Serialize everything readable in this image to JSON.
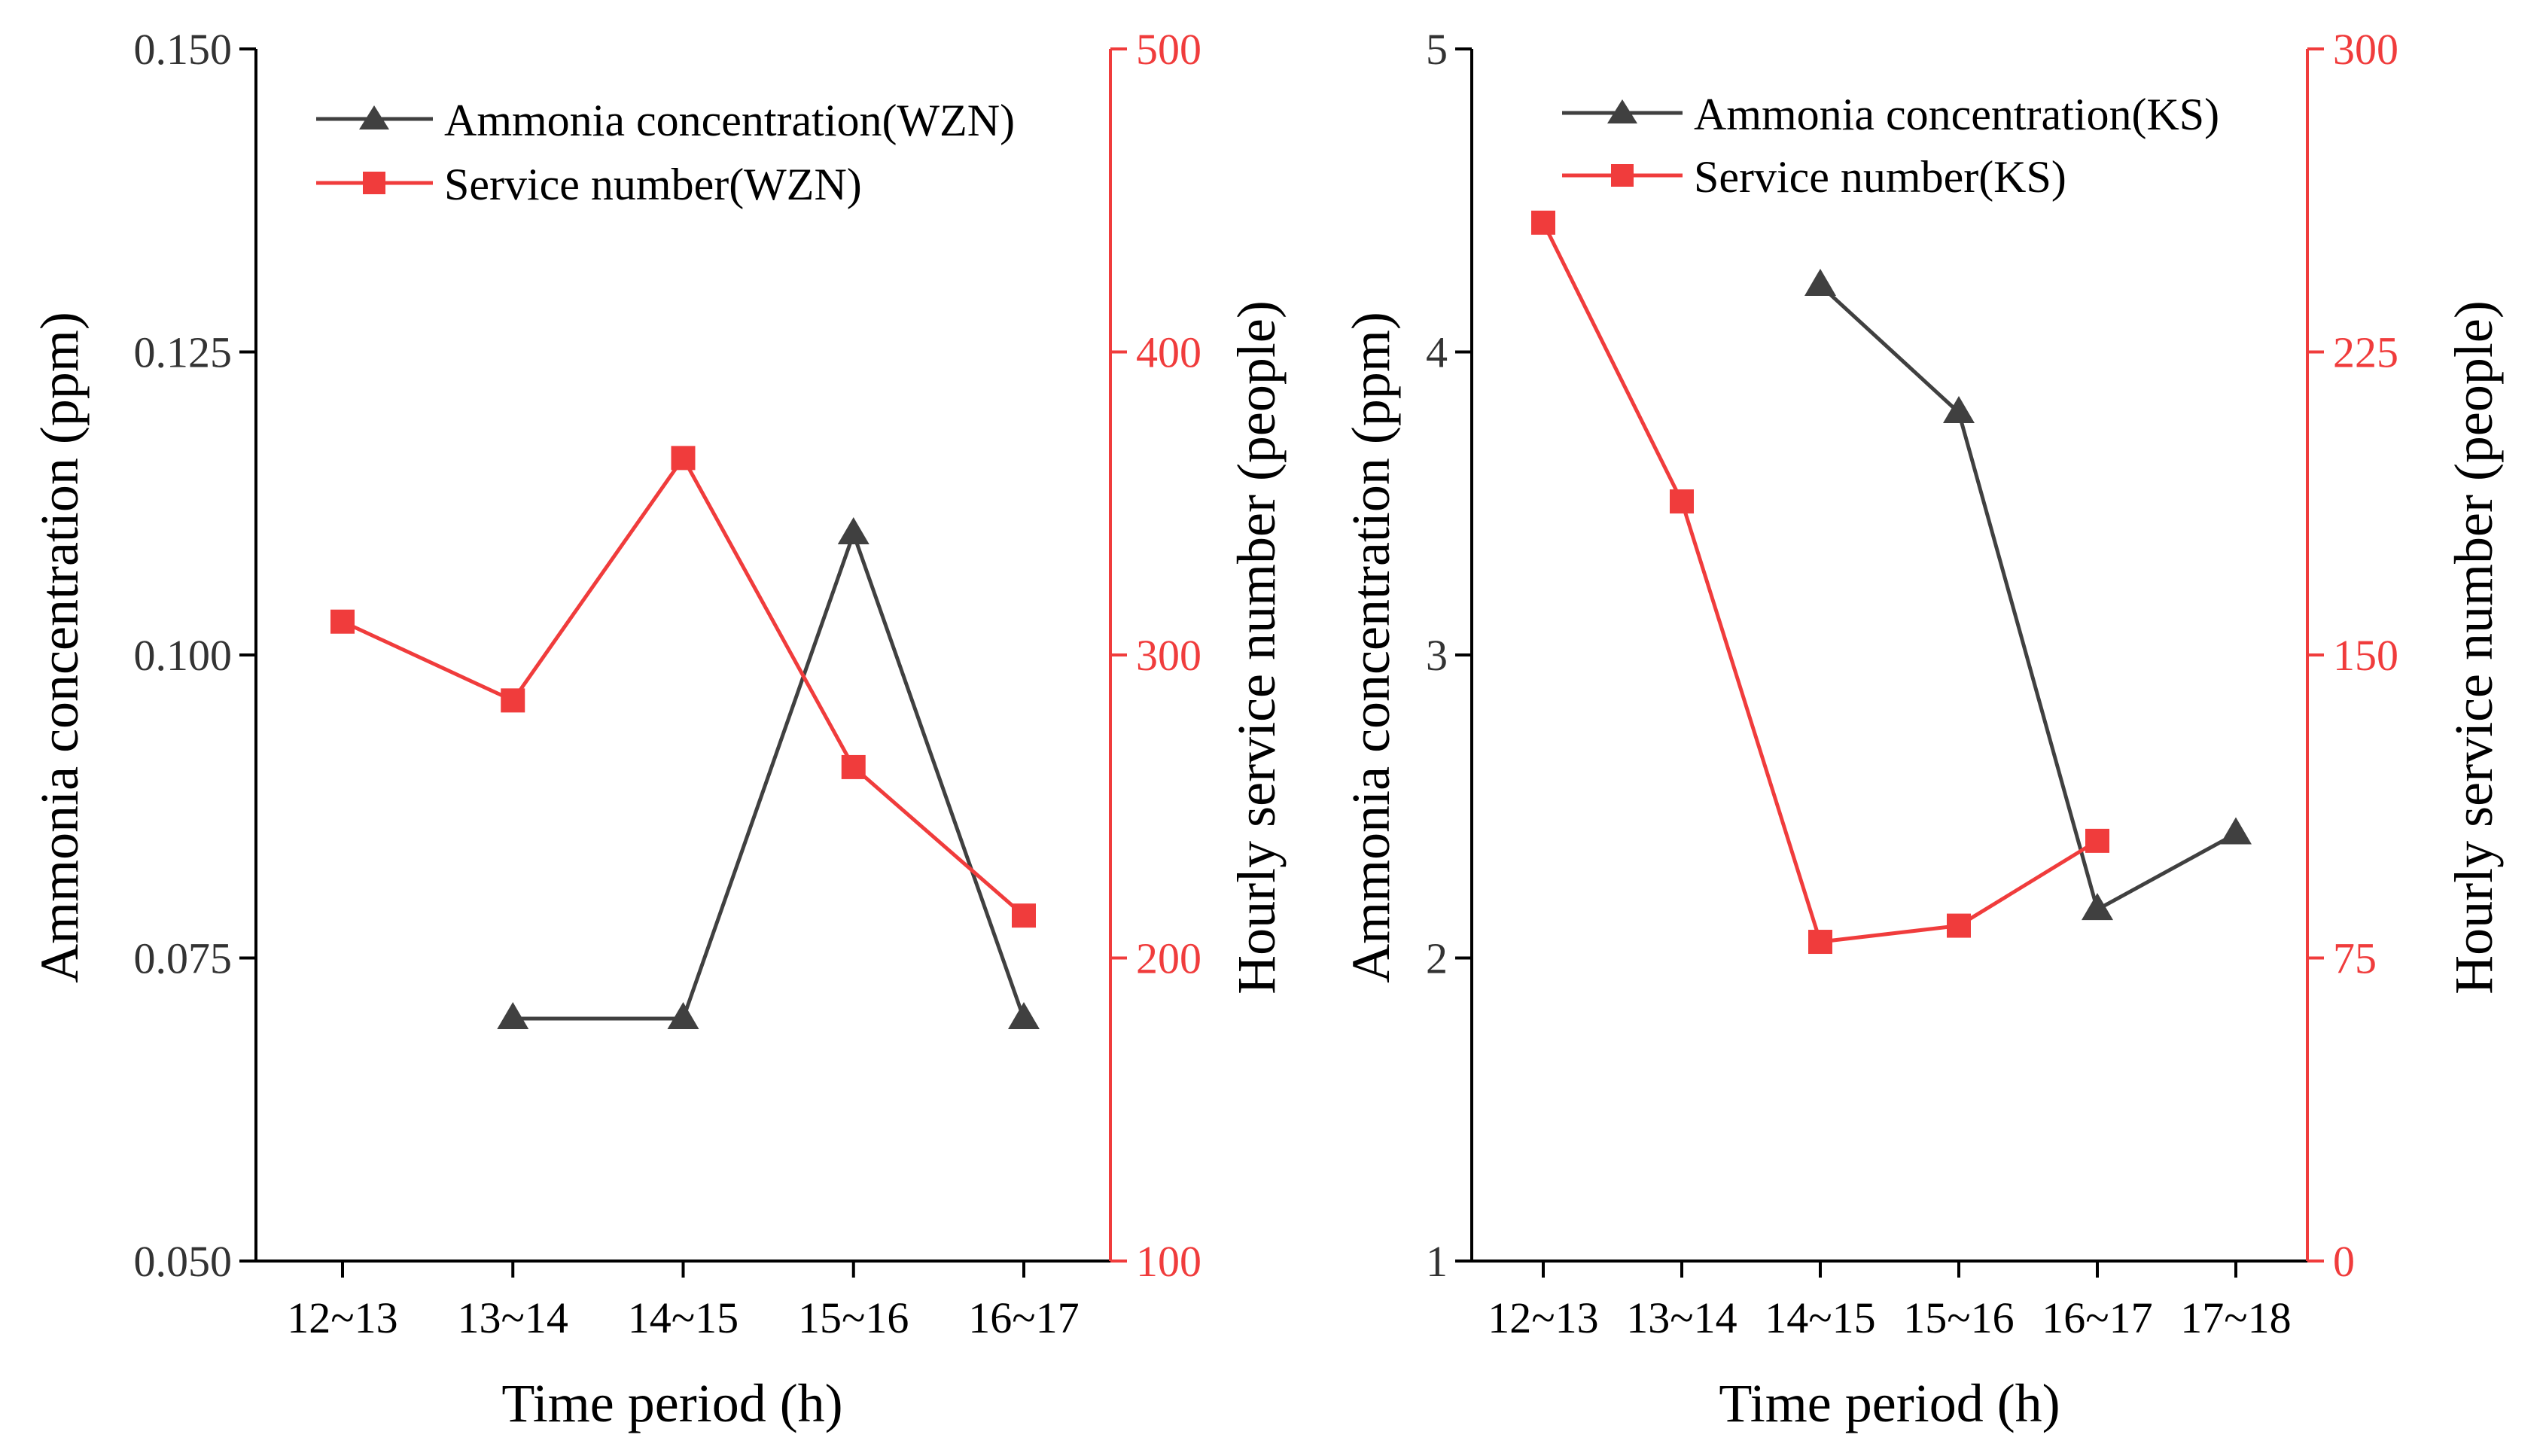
{
  "colors": {
    "black_series": "#404040",
    "red_series": "#f03c3c",
    "axis": "#000000"
  },
  "chart_data": [
    {
      "type": "line",
      "panel": "left",
      "xlabel": "Time period (h)",
      "ylabel_left": "Ammonia concentration (ppm)",
      "ylabel_right": "Hourly service number (people)",
      "categories": [
        "12~13",
        "13~14",
        "14~15",
        "15~16",
        "16~17"
      ],
      "y_left": {
        "range": [
          0.05,
          0.15
        ],
        "ticks": [
          "0.050",
          "0.075",
          "0.100",
          "0.125",
          "0.150"
        ],
        "values": [
          0.05,
          0.075,
          0.1,
          0.125,
          0.15
        ]
      },
      "y_right": {
        "range": [
          100,
          500
        ],
        "ticks": [
          "100",
          "200",
          "300",
          "400",
          "500"
        ],
        "values": [
          100,
          200,
          300,
          400,
          500
        ]
      },
      "legend": [
        "Ammonia concentration(WZN)",
        "Service number(WZN)"
      ],
      "legend_position": "top-center",
      "series": [
        {
          "name": "Ammonia concentration(WZN)",
          "axis": "left",
          "marker": "triangle",
          "values": [
            null,
            0.07,
            0.07,
            0.11,
            0.07
          ]
        },
        {
          "name": "Service number(WZN)",
          "axis": "right",
          "marker": "square",
          "values": [
            311,
            285,
            365,
            263,
            214
          ]
        }
      ]
    },
    {
      "type": "line",
      "panel": "right",
      "xlabel": "Time period (h)",
      "ylabel_left": "Ammonia concentration (ppm)",
      "ylabel_right": "Hourly service number (people)",
      "categories": [
        "12~13",
        "13~14",
        "14~15",
        "15~16",
        "16~17",
        "17~18"
      ],
      "y_left": {
        "range": [
          1,
          5
        ],
        "ticks": [
          "1",
          "2",
          "3",
          "4",
          "5"
        ],
        "values": [
          1,
          2,
          3,
          4,
          5
        ]
      },
      "y_right": {
        "range": [
          0,
          300
        ],
        "ticks": [
          "0",
          "75",
          "150",
          "225",
          "300"
        ],
        "values": [
          0,
          75,
          150,
          225,
          300
        ]
      },
      "legend": [
        "Ammonia concentration(KS)",
        "Service number(KS)"
      ],
      "legend_position": "top-center",
      "series": [
        {
          "name": "Ammonia concentration(KS)",
          "axis": "left",
          "marker": "triangle",
          "values": [
            null,
            null,
            4.22,
            3.8,
            2.16,
            2.41
          ]
        },
        {
          "name": "Service number(KS)",
          "axis": "right",
          "marker": "square",
          "values": [
            257,
            188,
            79,
            83,
            104,
            null
          ]
        }
      ]
    }
  ]
}
